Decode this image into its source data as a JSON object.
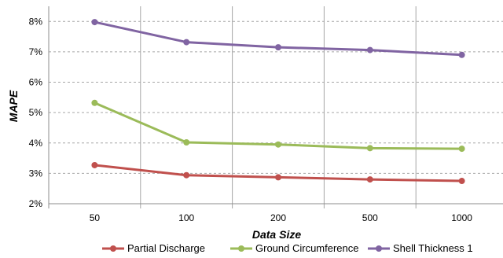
{
  "chart_data": {
    "type": "line",
    "title": "",
    "xlabel": "Data Size",
    "ylabel": "MAPE",
    "categories": [
      "50",
      "100",
      "200",
      "500",
      "1000"
    ],
    "y_ticks": [
      "2%",
      "3%",
      "4%",
      "5%",
      "6%",
      "7%",
      "8%"
    ],
    "ylim": [
      2,
      8.5
    ],
    "y_unit": "%",
    "grid": "horizontal dashed",
    "legend": "bottom",
    "series": [
      {
        "name": "Partial Discharge",
        "color": "#C0504D",
        "values": [
          3.27,
          2.94,
          2.87,
          2.8,
          2.75
        ]
      },
      {
        "name": "Ground Circumference",
        "color": "#9BBB59",
        "values": [
          5.32,
          4.02,
          3.95,
          3.83,
          3.81
        ]
      },
      {
        "name": "Shell Thickness 1",
        "color": "#8064A2",
        "values": [
          7.98,
          7.32,
          7.15,
          7.06,
          6.9
        ]
      }
    ]
  }
}
